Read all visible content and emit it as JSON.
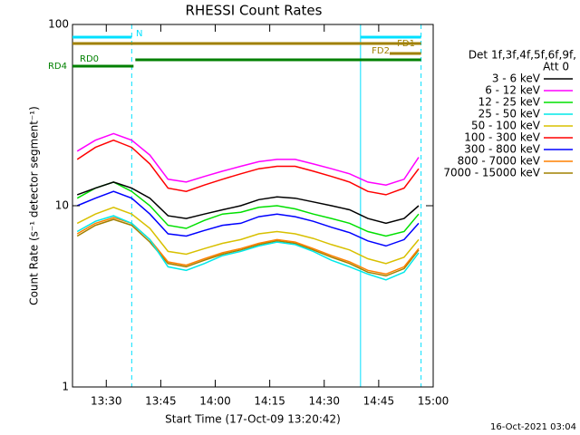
{
  "chart_data": {
    "type": "line",
    "title": "RHESSI Count Rates",
    "xlabel": "Start Time (17-Oct-09 13:20:42)",
    "ylabel": "Count Rate (s⁻¹ detector segment⁻¹)",
    "legend_title": [
      "Det 1f,3f,4f,5f,6f,9f,",
      "Att 0"
    ],
    "footer": "16-Oct-2021 03:04",
    "log_y": true,
    "xlim": [
      "13:20:42",
      "15:00"
    ],
    "xticks": [
      "13:30",
      "13:45",
      "14:00",
      "14:15",
      "14:30",
      "14:45",
      "15:00"
    ],
    "ylim": [
      1,
      100
    ],
    "yticks": [
      1,
      10,
      100
    ],
    "x": [
      "13:22",
      "13:27",
      "13:32",
      "13:37",
      "13:42",
      "13:47",
      "13:52",
      "13:57",
      "14:02",
      "14:07",
      "14:12",
      "14:17",
      "14:22",
      "14:27",
      "14:32",
      "14:37",
      "14:42",
      "14:47",
      "14:52",
      "14:56"
    ],
    "series": [
      {
        "name": "3 - 6 keV",
        "color": "#000000",
        "values": [
          11.5,
          12.5,
          13.5,
          12.5,
          11,
          8.8,
          8.5,
          9,
          9.5,
          10,
          10.8,
          11.2,
          11,
          10.5,
          10,
          9.5,
          8.5,
          8,
          8.5,
          10
        ]
      },
      {
        "name": "6 - 12 keV",
        "color": "#ff00ff",
        "values": [
          20,
          23,
          25,
          23,
          19,
          14,
          13.5,
          14.5,
          15.5,
          16.5,
          17.5,
          18,
          18,
          17,
          16,
          15,
          13.5,
          13,
          14,
          18.5
        ]
      },
      {
        "name": "12 - 25 keV",
        "color": "#00e000",
        "values": [
          11,
          12.5,
          13.5,
          12,
          10,
          7.8,
          7.5,
          8.3,
          9,
          9.2,
          9.8,
          10,
          9.6,
          9,
          8.5,
          8,
          7.2,
          6.8,
          7.2,
          9
        ]
      },
      {
        "name": "25 - 50 keV",
        "color": "#00e8e8",
        "values": [
          7.2,
          8.2,
          8.8,
          8,
          6.5,
          4.6,
          4.4,
          4.8,
          5.3,
          5.6,
          6,
          6.3,
          6.1,
          5.6,
          5,
          4.6,
          4.2,
          3.9,
          4.3,
          5.5
        ]
      },
      {
        "name": "50 - 100 keV",
        "color": "#d8c000",
        "values": [
          8,
          9,
          9.8,
          9,
          7.5,
          5.6,
          5.4,
          5.8,
          6.2,
          6.5,
          7,
          7.2,
          7,
          6.6,
          6.1,
          5.7,
          5.1,
          4.8,
          5.2,
          6.5
        ]
      },
      {
        "name": "100 - 300 keV",
        "color": "#ff0000",
        "values": [
          18,
          21,
          23,
          21,
          17,
          12.5,
          12,
          13,
          14,
          15,
          16,
          16.5,
          16.5,
          15.5,
          14.5,
          13.5,
          12,
          11.5,
          12.5,
          16
        ]
      },
      {
        "name": "300 - 800 keV",
        "color": "#0000ff",
        "values": [
          10,
          11,
          12,
          11,
          9,
          7,
          6.8,
          7.3,
          7.8,
          8,
          8.7,
          9,
          8.7,
          8.2,
          7.6,
          7.1,
          6.4,
          6,
          6.5,
          8
        ]
      },
      {
        "name": "800 - 7000 keV",
        "color": "#ff8000",
        "values": [
          7,
          8,
          8.6,
          8,
          6.5,
          4.9,
          4.7,
          5.1,
          5.5,
          5.8,
          6.2,
          6.5,
          6.3,
          5.8,
          5.3,
          4.9,
          4.4,
          4.2,
          4.6,
          5.8
        ]
      },
      {
        "name": "7000 - 15000 keV",
        "color": "#a08000",
        "values": [
          6.8,
          7.8,
          8.4,
          7.8,
          6.3,
          4.8,
          4.6,
          5,
          5.4,
          5.7,
          6.1,
          6.4,
          6.2,
          5.7,
          5.2,
          4.8,
          4.3,
          4.1,
          4.5,
          5.7
        ]
      }
    ],
    "annotations": [
      {
        "label": "N",
        "color": "#00e0ff",
        "segments": [
          [
            "13:20:42",
            "13:37"
          ],
          [
            "14:40",
            "14:56:40"
          ]
        ]
      },
      {
        "label": "FD1",
        "color": "#a08000",
        "segments": [
          [
            "13:20:42",
            "14:56:40"
          ]
        ]
      },
      {
        "label": "FD2",
        "color": "#a08000",
        "segments": [
          [
            "14:48",
            "14:56:40"
          ]
        ]
      },
      {
        "label": "RD0",
        "color": "#008000",
        "segments": [
          [
            "13:38",
            "14:56:40"
          ]
        ]
      },
      {
        "label": "RD4",
        "color": "#008000",
        "segments": [
          [
            "13:20:42",
            "13:37:30"
          ]
        ]
      }
    ],
    "event_lines": [
      {
        "x": "13:20:42",
        "color": "#00e0ff",
        "dashed": false
      },
      {
        "x": "13:37",
        "color": "#00e0ff",
        "dashed": true
      },
      {
        "x": "14:40",
        "color": "#00e0ff",
        "dashed": false
      },
      {
        "x": "14:56:40",
        "color": "#00e0ff",
        "dashed": true
      }
    ]
  }
}
